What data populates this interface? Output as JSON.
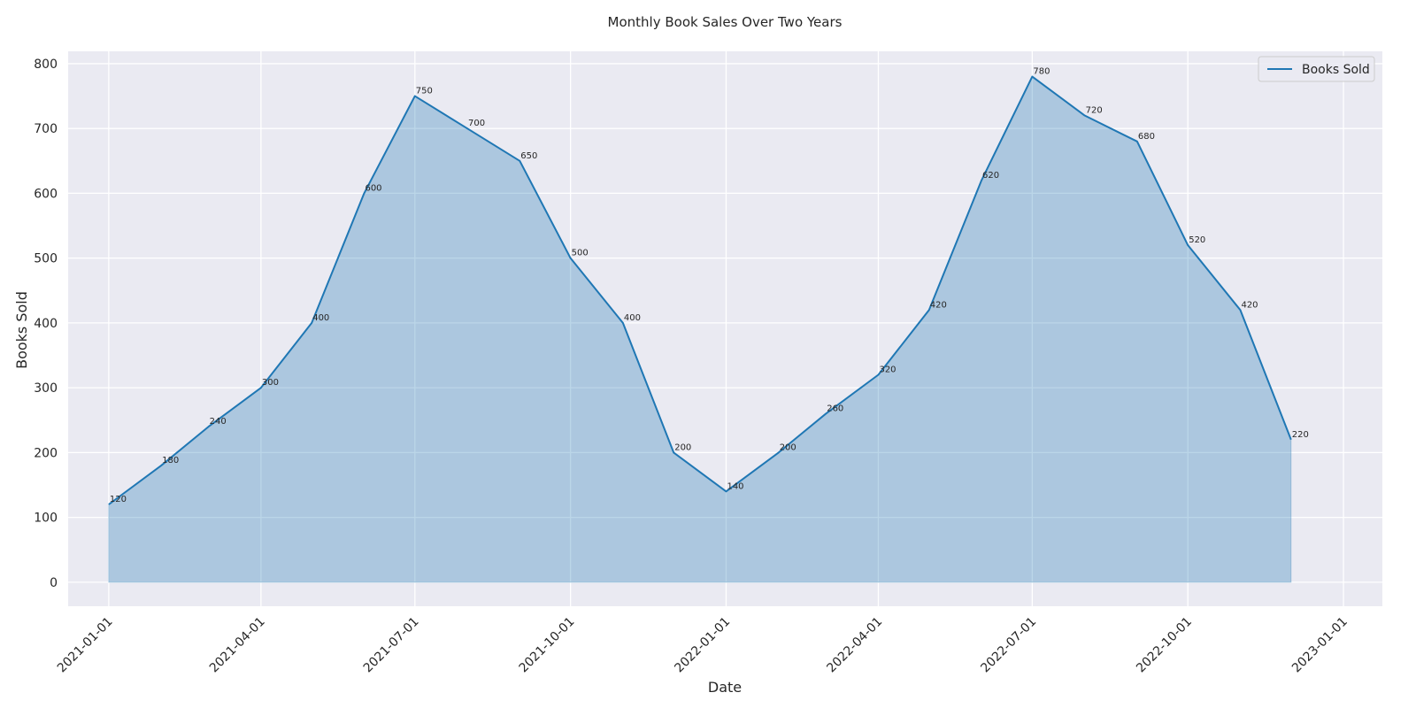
{
  "chart_data": {
    "type": "area",
    "title": "Monthly Book Sales Over Two Years",
    "xlabel": "Date",
    "ylabel": "Books Sold",
    "x": [
      "2021-01-01",
      "2021-02-01",
      "2021-03-01",
      "2021-04-01",
      "2021-05-01",
      "2021-06-01",
      "2021-07-01",
      "2021-08-01",
      "2021-09-01",
      "2021-10-01",
      "2021-11-01",
      "2021-12-01",
      "2022-01-01",
      "2022-02-01",
      "2022-03-01",
      "2022-04-01",
      "2022-05-01",
      "2022-06-01",
      "2022-07-01",
      "2022-08-01",
      "2022-09-01",
      "2022-10-01",
      "2022-11-01",
      "2022-12-01"
    ],
    "series": [
      {
        "name": "Books Sold",
        "values": [
          120,
          180,
          240,
          300,
          400,
          600,
          750,
          700,
          650,
          500,
          400,
          200,
          140,
          200,
          260,
          320,
          420,
          620,
          780,
          720,
          680,
          520,
          420,
          220
        ]
      }
    ],
    "data_labels": [
      "120",
      "180",
      "240",
      "300",
      "400",
      "600",
      "750",
      "700",
      "650",
      "500",
      "400",
      "200",
      "140",
      "200",
      "260",
      "320",
      "420",
      "620",
      "780",
      "720",
      "680",
      "520",
      "420",
      "220"
    ],
    "xticks": [
      "2021-01-01",
      "2021-04-01",
      "2021-07-01",
      "2021-10-01",
      "2022-01-01",
      "2022-04-01",
      "2022-07-01",
      "2022-10-01",
      "2023-01-01"
    ],
    "yticks": [
      "0",
      "100",
      "200",
      "300",
      "400",
      "500",
      "600",
      "700",
      "800"
    ],
    "xlim": [
      "2020-12-08",
      "2023-01-24"
    ],
    "ylim": [
      -37,
      819
    ],
    "grid": true,
    "legend_position": "top-right",
    "colors": {
      "line": "#1f77b4",
      "fill": "#1f77b4",
      "plot_background": "#eaeaf2",
      "grid": "#ffffff"
    }
  }
}
